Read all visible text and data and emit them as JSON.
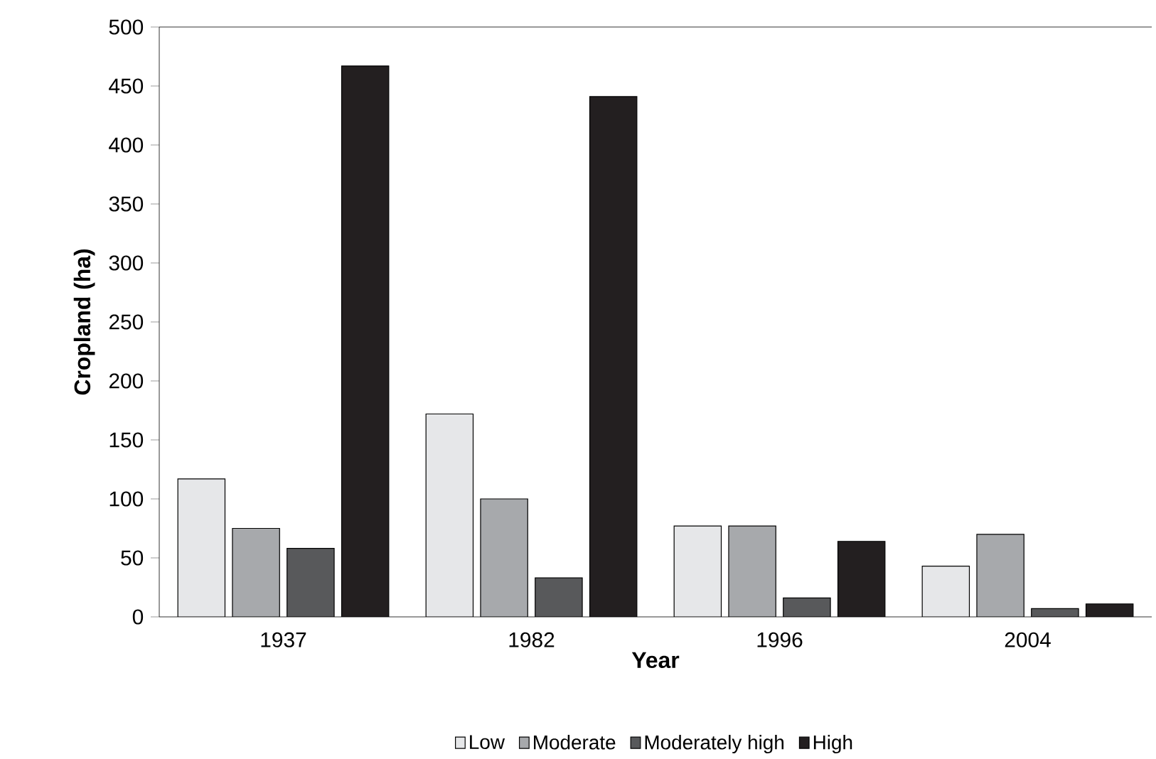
{
  "chart_data": {
    "type": "bar",
    "xlabel": "Year",
    "ylabel": "Cropland (ha)",
    "categories": [
      "1937",
      "1982",
      "1996",
      "2004"
    ],
    "series": [
      {
        "name": "Low",
        "color": "#e6e7e9",
        "values": [
          117,
          172,
          77,
          43
        ]
      },
      {
        "name": "Moderate",
        "color": "#a7a9ac",
        "values": [
          75,
          100,
          77,
          70
        ]
      },
      {
        "name": "Moderately high",
        "color": "#58595b",
        "values": [
          58,
          33,
          16,
          7
        ]
      },
      {
        "name": "High",
        "color": "#231f20",
        "values": [
          467,
          441,
          64,
          11
        ]
      }
    ],
    "ylim": [
      0,
      500
    ],
    "yticks": [
      0,
      50,
      100,
      150,
      200,
      250,
      300,
      350,
      400,
      450,
      500
    ],
    "grid": false,
    "legend": "bottom"
  }
}
